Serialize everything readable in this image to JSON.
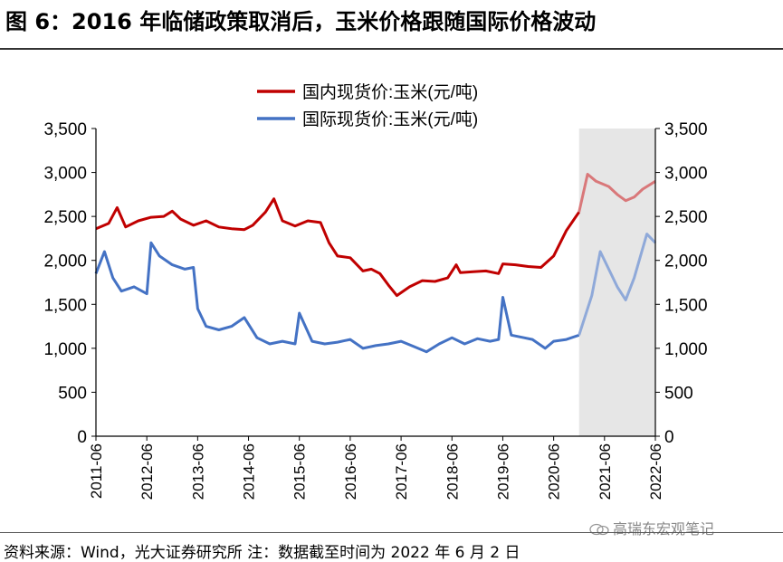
{
  "title": "图 6：2016 年临储政策取消后，玉米价格跟随国际价格波动",
  "source": "资料来源：Wind，光大证券研究所 注：数据截至时间为 2022 年 6 月 2 日",
  "watermark": "高瑞东宏观笔记",
  "colors": {
    "domestic": "#c00000",
    "domestic_light": "#d9787a",
    "international": "#4472c4",
    "international_light": "#8fa9d9",
    "shade": "#e6e6e6",
    "axis": "#000000"
  },
  "chart_data": {
    "type": "line",
    "x_ticks": [
      "2011-06",
      "2012-06",
      "2013-06",
      "2014-06",
      "2015-06",
      "2016-06",
      "2017-06",
      "2018-06",
      "2019-06",
      "2020-06",
      "2021-06",
      "2022-06"
    ],
    "x_range": [
      "2011-06",
      "2022-06"
    ],
    "ylim": [
      0,
      3500
    ],
    "y_ticks": [
      0,
      500,
      1000,
      1500,
      2000,
      2500,
      3000,
      3500
    ],
    "y_tick_labels": [
      "0",
      "500",
      "1,000",
      "1,500",
      "2,000",
      "2,500",
      "3,000",
      "3,500"
    ],
    "shaded_region": [
      "2020-12",
      "2022-06"
    ],
    "grid": false,
    "legend_placement": "top-center",
    "series": [
      {
        "name": "国内现货价:玉米(元/吨)",
        "color_key": "domestic",
        "points": [
          [
            "2011-06",
            2360
          ],
          [
            "2011-09",
            2420
          ],
          [
            "2011-11",
            2600
          ],
          [
            "2012-01",
            2380
          ],
          [
            "2012-04",
            2450
          ],
          [
            "2012-07",
            2490
          ],
          [
            "2012-10",
            2500
          ],
          [
            "2012-12",
            2560
          ],
          [
            "2013-02",
            2470
          ],
          [
            "2013-05",
            2400
          ],
          [
            "2013-08",
            2450
          ],
          [
            "2013-11",
            2380
          ],
          [
            "2014-02",
            2360
          ],
          [
            "2014-05",
            2350
          ],
          [
            "2014-07",
            2400
          ],
          [
            "2014-10",
            2550
          ],
          [
            "2014-12",
            2700
          ],
          [
            "2015-02",
            2450
          ],
          [
            "2015-05",
            2390
          ],
          [
            "2015-08",
            2450
          ],
          [
            "2015-11",
            2430
          ],
          [
            "2016-01",
            2200
          ],
          [
            "2016-03",
            2050
          ],
          [
            "2016-06",
            2030
          ],
          [
            "2016-09",
            1880
          ],
          [
            "2016-11",
            1900
          ],
          [
            "2017-01",
            1850
          ],
          [
            "2017-03",
            1720
          ],
          [
            "2017-05",
            1600
          ],
          [
            "2017-08",
            1700
          ],
          [
            "2017-11",
            1770
          ],
          [
            "2018-02",
            1760
          ],
          [
            "2018-05",
            1800
          ],
          [
            "2018-07",
            1950
          ],
          [
            "2018-08",
            1860
          ],
          [
            "2018-11",
            1870
          ],
          [
            "2019-02",
            1880
          ],
          [
            "2019-05",
            1850
          ],
          [
            "2019-06",
            1960
          ],
          [
            "2019-09",
            1950
          ],
          [
            "2019-12",
            1930
          ],
          [
            "2020-03",
            1920
          ],
          [
            "2020-06",
            2050
          ],
          [
            "2020-09",
            2340
          ],
          [
            "2020-12",
            2550
          ],
          [
            "2021-02",
            2980
          ],
          [
            "2021-04",
            2900
          ],
          [
            "2021-07",
            2840
          ],
          [
            "2021-09",
            2750
          ],
          [
            "2021-11",
            2680
          ],
          [
            "2022-01",
            2720
          ],
          [
            "2022-03",
            2810
          ],
          [
            "2022-06",
            2900
          ]
        ]
      },
      {
        "name": "国际现货价:玉米(元/吨)",
        "color_key": "international",
        "points": [
          [
            "2011-06",
            1850
          ],
          [
            "2011-08",
            2100
          ],
          [
            "2011-10",
            1800
          ],
          [
            "2011-12",
            1650
          ],
          [
            "2012-03",
            1700
          ],
          [
            "2012-06",
            1620
          ],
          [
            "2012-07",
            2200
          ],
          [
            "2012-09",
            2050
          ],
          [
            "2012-12",
            1950
          ],
          [
            "2013-03",
            1900
          ],
          [
            "2013-05",
            1920
          ],
          [
            "2013-06",
            1450
          ],
          [
            "2013-08",
            1250
          ],
          [
            "2013-11",
            1210
          ],
          [
            "2014-02",
            1250
          ],
          [
            "2014-05",
            1350
          ],
          [
            "2014-08",
            1120
          ],
          [
            "2014-11",
            1050
          ],
          [
            "2015-02",
            1080
          ],
          [
            "2015-05",
            1050
          ],
          [
            "2015-06",
            1400
          ],
          [
            "2015-09",
            1080
          ],
          [
            "2015-12",
            1050
          ],
          [
            "2016-03",
            1070
          ],
          [
            "2016-06",
            1100
          ],
          [
            "2016-09",
            1000
          ],
          [
            "2016-12",
            1030
          ],
          [
            "2017-03",
            1050
          ],
          [
            "2017-06",
            1080
          ],
          [
            "2017-09",
            1020
          ],
          [
            "2017-12",
            960
          ],
          [
            "2018-03",
            1050
          ],
          [
            "2018-06",
            1120
          ],
          [
            "2018-09",
            1050
          ],
          [
            "2018-12",
            1110
          ],
          [
            "2019-03",
            1080
          ],
          [
            "2019-05",
            1100
          ],
          [
            "2019-06",
            1580
          ],
          [
            "2019-08",
            1150
          ],
          [
            "2019-11",
            1120
          ],
          [
            "2020-01",
            1100
          ],
          [
            "2020-04",
            1000
          ],
          [
            "2020-06",
            1080
          ],
          [
            "2020-09",
            1100
          ],
          [
            "2020-12",
            1150
          ],
          [
            "2021-03",
            1600
          ],
          [
            "2021-05",
            2100
          ],
          [
            "2021-07",
            1900
          ],
          [
            "2021-09",
            1700
          ],
          [
            "2021-11",
            1550
          ],
          [
            "2022-01",
            1800
          ],
          [
            "2022-04",
            2300
          ],
          [
            "2022-06",
            2200
          ]
        ]
      }
    ]
  }
}
